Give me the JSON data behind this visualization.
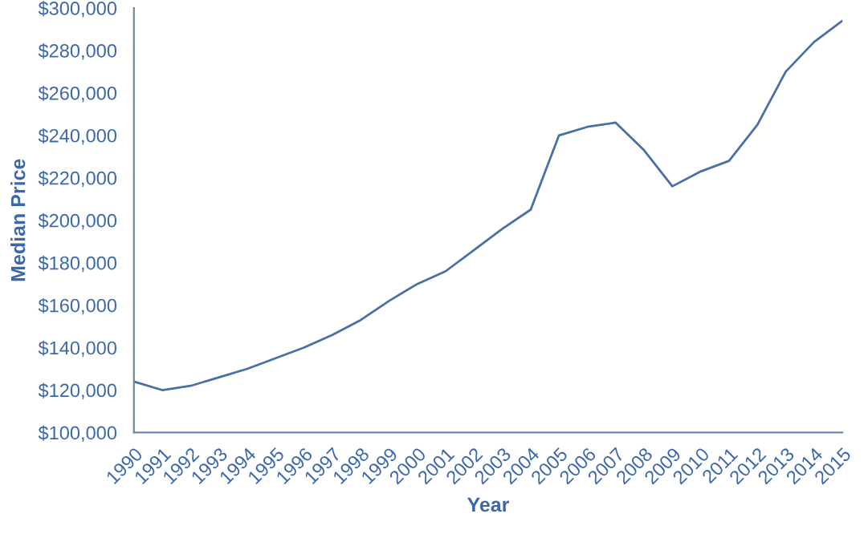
{
  "chart_data": {
    "type": "line",
    "xlabel": "Year",
    "ylabel": "Median Price",
    "x": [
      1990,
      1991,
      1992,
      1993,
      1994,
      1995,
      1996,
      1997,
      1998,
      1999,
      2000,
      2001,
      2002,
      2003,
      2004,
      2005,
      2006,
      2007,
      2008,
      2009,
      2010,
      2011,
      2012,
      2013,
      2014,
      2015
    ],
    "series": [
      {
        "color": "#4a6fa5",
        "values": [
          124000,
          120000,
          122000,
          126000,
          130000,
          135000,
          140000,
          146000,
          153000,
          162000,
          170000,
          176000,
          186000,
          196000,
          205000,
          240000,
          244000,
          246000,
          233000,
          216000,
          223000,
          228000,
          245000,
          270000,
          284000,
          294000
        ]
      }
    ],
    "xlim": [
      1990,
      2015
    ],
    "xticks": [
      1990,
      1991,
      1992,
      1993,
      1994,
      1995,
      1996,
      1997,
      1998,
      1999,
      2000,
      2001,
      2002,
      2003,
      2004,
      2005,
      2006,
      2007,
      2008,
      2009,
      2010,
      2011,
      2012,
      2013,
      2014,
      2015
    ],
    "ylim": [
      100000,
      300000
    ],
    "yticks": [
      {
        "value": 100000,
        "label": "$100,000"
      },
      {
        "value": 120000,
        "label": "$120,000"
      },
      {
        "value": 140000,
        "label": "$140,000"
      },
      {
        "value": 160000,
        "label": "$160,000"
      },
      {
        "value": 180000,
        "label": "$180,000"
      },
      {
        "value": 200000,
        "label": "$200,000"
      },
      {
        "value": 220000,
        "label": "$220,000"
      },
      {
        "value": 240000,
        "label": "$240,000"
      },
      {
        "value": 260000,
        "label": "$260,000"
      },
      {
        "value": 280000,
        "label": "$280,000"
      },
      {
        "value": 300000,
        "label": "$300,000"
      }
    ],
    "grid": false,
    "legend": false
  }
}
